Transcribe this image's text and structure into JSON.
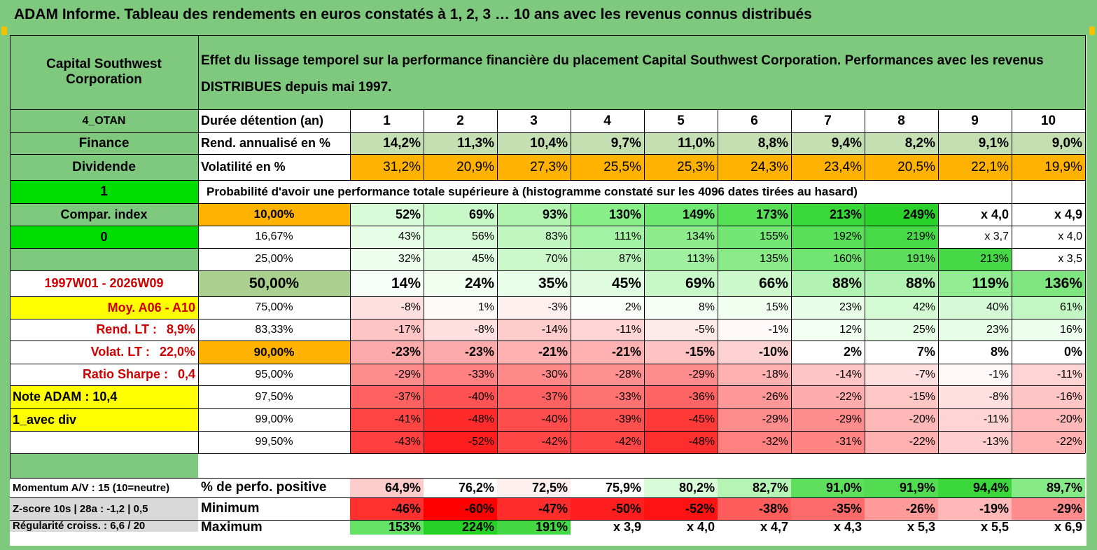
{
  "title": "ADAM Informe. Tableau des rendements en euros constatés à 1, 2, 3 … 10 ans avec les revenus connus distribués",
  "header": {
    "company": "Capital Southwest Corporation",
    "description": "Effet du lissage temporel sur la performance financière du placement Capital Southwest Corporation. Performances avec les revenus DISTRIBUES depuis mai 1997."
  },
  "left": {
    "code": "4_OTAN",
    "sector": "Finance",
    "type": "Dividende",
    "flag1": "1",
    "compar": "Compar. index",
    "flag0": "0",
    "period": "1997W01 - 2026W09",
    "moy": "Moy. A06 - A10",
    "rend_lt_label": "Rend. LT :",
    "rend_lt_value": "8,9%",
    "volat_lt_label": "Volat. LT :",
    "volat_lt_value": "22,0%",
    "sharpe_label": "Ratio Sharpe :",
    "sharpe_value": "0,4",
    "note": "Note ADAM : 10,4",
    "avec_div": "1_avec div",
    "momentum": "Momentum A/V : 15 (10=neutre)",
    "zscore": "Z-score 10s | 28a : -1,2 | 0,5",
    "regularite": "Régularité croiss. : 6,6 / 20"
  },
  "duration": {
    "label": "Durée détention (an)",
    "years": [
      "1",
      "2",
      "3",
      "4",
      "5",
      "6",
      "7",
      "8",
      "9",
      "10"
    ]
  },
  "rend": {
    "label": "Rend. annualisé en %",
    "values": [
      "14,2%",
      "11,3%",
      "10,4%",
      "9,7%",
      "11,0%",
      "8,8%",
      "9,4%",
      "8,2%",
      "9,1%",
      "9,0%"
    ]
  },
  "vol": {
    "label": "Volatilité en %",
    "values": [
      "31,2%",
      "20,9%",
      "27,3%",
      "25,5%",
      "25,3%",
      "24,3%",
      "23,4%",
      "20,5%",
      "22,1%",
      "19,9%"
    ]
  },
  "proba_title": "Probabilité d'avoir une performance totale supérieure à (histogramme constaté sur les 4096 dates tirées au hasard)",
  "colors": {
    "frame": "#7fc97f",
    "left_green": "#7fc97f",
    "bright_green": "#00dd00",
    "orange": "#ffb300",
    "yellow": "#ffff00",
    "rend_green": "#c4e0b2",
    "pct50": "#a9d08e",
    "text_red": "#d00000",
    "gray": "#d9d9d9"
  },
  "pct_rows": [
    {
      "pct": "10,00%",
      "values": [
        "52%",
        "69%",
        "93%",
        "130%",
        "149%",
        "173%",
        "213%",
        "249%",
        "x 4,0",
        "x 4,9"
      ],
      "bold": true,
      "colors": [
        "#d8fcd8",
        "#c8f8c8",
        "#b0f4b0",
        "#88ee88",
        "#6fe86f",
        "#55e055",
        "#39d839",
        "#2ad32a",
        "#ffffff",
        "#ffffff"
      ]
    },
    {
      "pct": "16,67%",
      "values": [
        "43%",
        "56%",
        "83%",
        "111%",
        "134%",
        "155%",
        "192%",
        "219%",
        "x 3,7",
        "x 4,0"
      ],
      "bold": false,
      "colors": [
        "#e6fee6",
        "#d6fbd6",
        "#c0f6c0",
        "#a4f2a4",
        "#8cec8c",
        "#74e674",
        "#58e058",
        "#46da46",
        "#ffffff",
        "#ffffff"
      ]
    },
    {
      "pct": "25,00%",
      "values": [
        "32%",
        "45%",
        "70%",
        "87%",
        "113%",
        "135%",
        "160%",
        "191%",
        "213%",
        "x 3,5"
      ],
      "bold": false,
      "colors": [
        "#eefeee",
        "#e0fce0",
        "#ccf8cc",
        "#b8f4b8",
        "#a0f0a0",
        "#8aea8a",
        "#72e472",
        "#5cde5c",
        "#46d846",
        "#ffffff"
      ]
    },
    {
      "pct": "50,00%",
      "values": [
        "14%",
        "24%",
        "35%",
        "45%",
        "69%",
        "66%",
        "88%",
        "88%",
        "119%",
        "136%"
      ],
      "bold": true,
      "big": true,
      "colors": [
        "#f8fff8",
        "#f0fff0",
        "#e8fee8",
        "#e0fce0",
        "#c8f8c8",
        "#ccf8cc",
        "#b2f2b2",
        "#b2f2b2",
        "#92ec92",
        "#7fe67f"
      ]
    },
    {
      "pct": "75,00%",
      "values": [
        "-8%",
        "1%",
        "-3%",
        "2%",
        "8%",
        "15%",
        "23%",
        "42%",
        "40%",
        "61%"
      ],
      "bold": false,
      "colors": [
        "#ffe0e0",
        "#fffafa",
        "#fff0f0",
        "#fafffa",
        "#f6fff6",
        "#f0fff0",
        "#e8fde8",
        "#d4fad4",
        "#d6fad6",
        "#c2f6c2"
      ]
    },
    {
      "pct": "83,33%",
      "values": [
        "-17%",
        "-8%",
        "-14%",
        "-11%",
        "-5%",
        "-1%",
        "12%",
        "25%",
        "23%",
        "16%"
      ],
      "bold": false,
      "colors": [
        "#ffc4c4",
        "#ffe0e0",
        "#ffcccc",
        "#ffd4d4",
        "#ffeaea",
        "#fff8f8",
        "#f2fff2",
        "#e6fde6",
        "#e8fde8",
        "#eefeee"
      ]
    },
    {
      "pct": "90,00%",
      "values": [
        "-23%",
        "-23%",
        "-21%",
        "-21%",
        "-15%",
        "-10%",
        "2%",
        "7%",
        "8%",
        "0%"
      ],
      "bold": true,
      "colors": [
        "#ffaaaa",
        "#ffaaaa",
        "#ffb0b0",
        "#ffb0b0",
        "#ffc2c2",
        "#ffd2d2",
        "#ffffff",
        "#ffffff",
        "#ffffff",
        "#ffffff"
      ]
    },
    {
      "pct": "95,00%",
      "values": [
        "-29%",
        "-33%",
        "-30%",
        "-28%",
        "-29%",
        "-18%",
        "-14%",
        "-7%",
        "-1%",
        "-11%"
      ],
      "bold": false,
      "colors": [
        "#ff8c8c",
        "#ff8080",
        "#ff8888",
        "#ff9090",
        "#ff8c8c",
        "#ffb0b0",
        "#ffc4c4",
        "#ffe0e0",
        "#fff8f8",
        "#ffd4d4"
      ]
    },
    {
      "pct": "97,50%",
      "values": [
        "-37%",
        "-40%",
        "-37%",
        "-33%",
        "-36%",
        "-26%",
        "-22%",
        "-15%",
        "-8%",
        "-16%"
      ],
      "bold": false,
      "colors": [
        "#ff6060",
        "#ff5252",
        "#ff6060",
        "#ff7272",
        "#ff6464",
        "#ff9898",
        "#ffacac",
        "#ffc6c6",
        "#ffe0e0",
        "#ffc4c4"
      ]
    },
    {
      "pct": "99,00%",
      "values": [
        "-41%",
        "-48%",
        "-40%",
        "-39%",
        "-45%",
        "-29%",
        "-29%",
        "-20%",
        "-11%",
        "-20%"
      ],
      "bold": false,
      "colors": [
        "#ff4444",
        "#ff2a2a",
        "#ff4c4c",
        "#ff5050",
        "#ff3838",
        "#ff8c8c",
        "#ff8c8c",
        "#ffb8b8",
        "#ffd4d4",
        "#ffb8b8"
      ]
    },
    {
      "pct": "99,50%",
      "values": [
        "-43%",
        "-52%",
        "-42%",
        "-42%",
        "-48%",
        "-32%",
        "-31%",
        "-22%",
        "-13%",
        "-22%"
      ],
      "bold": false,
      "colors": [
        "#ff4040",
        "#ff1e1e",
        "#ff4646",
        "#ff4646",
        "#ff2e2e",
        "#ff8080",
        "#ff8484",
        "#ffb0b0",
        "#ffcece",
        "#ffb0b0"
      ]
    }
  ],
  "stats": [
    {
      "label": "% de perfo. positive",
      "values": [
        "64,9%",
        "76,2%",
        "72,5%",
        "75,9%",
        "80,2%",
        "82,7%",
        "91,0%",
        "91,9%",
        "94,4%",
        "89,7%"
      ],
      "colors": [
        "#ffcccc",
        "#ffffff",
        "#fff0f0",
        "#ffffff",
        "#d8fcd8",
        "#b6f4b6",
        "#5edf5e",
        "#52dc52",
        "#3ad63a",
        "#86ea86"
      ]
    },
    {
      "label": "Minimum",
      "values": [
        "-46%",
        "-60%",
        "-47%",
        "-50%",
        "-52%",
        "-38%",
        "-35%",
        "-26%",
        "-19%",
        "-29%"
      ],
      "colors": [
        "#ff3030",
        "#ff0000",
        "#ff2c2c",
        "#ff1e1e",
        "#ff1212",
        "#ff5c5c",
        "#ff6a6a",
        "#ff9a9a",
        "#ffb8b8",
        "#ff8c8c"
      ]
    },
    {
      "label": "Maximum",
      "values": [
        "153%",
        "224%",
        "191%",
        "x 3,9",
        "x 4,0",
        "x 4,7",
        "x 4,3",
        "x 5,3",
        "x 5,5",
        "x 6,9"
      ],
      "colors": [
        "#66e266",
        "#26d226",
        "#44d944",
        "#ffffff",
        "#ffffff",
        "#ffffff",
        "#ffffff",
        "#ffffff",
        "#ffffff",
        "#ffffff"
      ]
    }
  ]
}
